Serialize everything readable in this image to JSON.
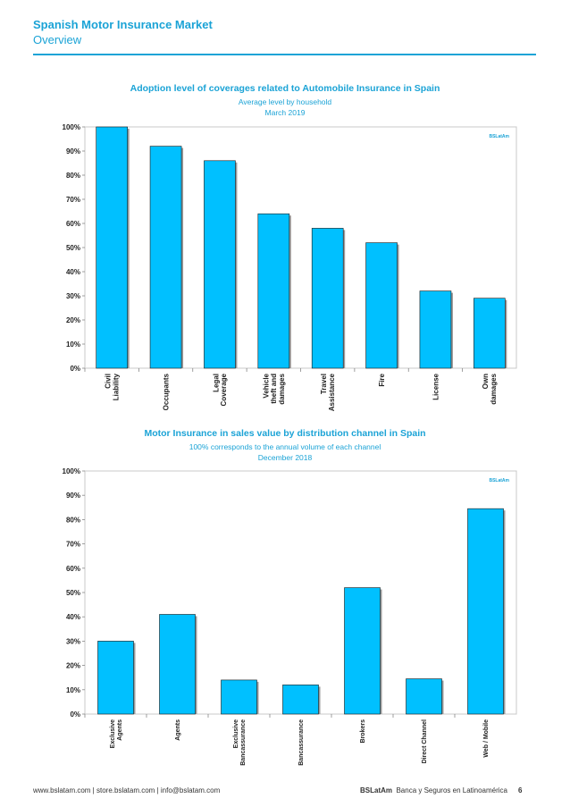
{
  "header": {
    "title": "Spanish Motor Insurance Market",
    "subtitle": "Overview"
  },
  "watermark": "BSLatAm",
  "colors": {
    "accent": "#1ba3d6",
    "bar": "#00c0ff",
    "bar_edge": "#1a1a1a"
  },
  "chart_data": [
    {
      "type": "bar",
      "title": "Adoption level of coverages related to Automobile Insurance in Spain",
      "subtitle": "Average level by household",
      "date": "March 2019",
      "categories": [
        [
          "Civil",
          "Liability"
        ],
        [
          "Occupants"
        ],
        [
          "Legal",
          "Coverage"
        ],
        [
          "Vehicle",
          "theft and",
          "damages"
        ],
        [
          "Travel",
          "Assistance"
        ],
        [
          "Fire"
        ],
        [
          "License"
        ],
        [
          "Own",
          "damages"
        ]
      ],
      "values": [
        1.0,
        0.92,
        0.86,
        0.64,
        0.58,
        0.52,
        0.32,
        0.29
      ],
      "ylim": [
        0,
        1
      ],
      "yticks": [
        "0%",
        "10%",
        "20%",
        "30%",
        "40%",
        "50%",
        "60%",
        "70%",
        "80%",
        "90%",
        "100%"
      ],
      "grid": false
    },
    {
      "type": "bar",
      "title": "Motor Insurance in sales value by distribution channel in Spain",
      "subtitle": "100% corresponds to the annual volume of each channel",
      "date": "December 2018",
      "categories": [
        [
          "Exclusive",
          "Agents"
        ],
        [
          "Agents"
        ],
        [
          "Exclusive",
          "Bancassurance"
        ],
        [
          "Bancassurance"
        ],
        [
          "Brokers"
        ],
        [
          "Direct Channel"
        ],
        [
          "Web / Mobile"
        ]
      ],
      "values": [
        0.3,
        0.41,
        0.14,
        0.12,
        0.52,
        0.145,
        0.845
      ],
      "ylim": [
        0,
        1
      ],
      "yticks": [
        "0%",
        "10%",
        "20%",
        "30%",
        "40%",
        "50%",
        "60%",
        "70%",
        "80%",
        "90%",
        "100%"
      ],
      "grid": false
    }
  ],
  "footer": {
    "links": "www.bslatam.com | store.bslatam.com | info@bslatam.com",
    "brand": "BSLatAm",
    "brand_text": "Banca y Seguros en Latinoamérica",
    "page": "6"
  }
}
